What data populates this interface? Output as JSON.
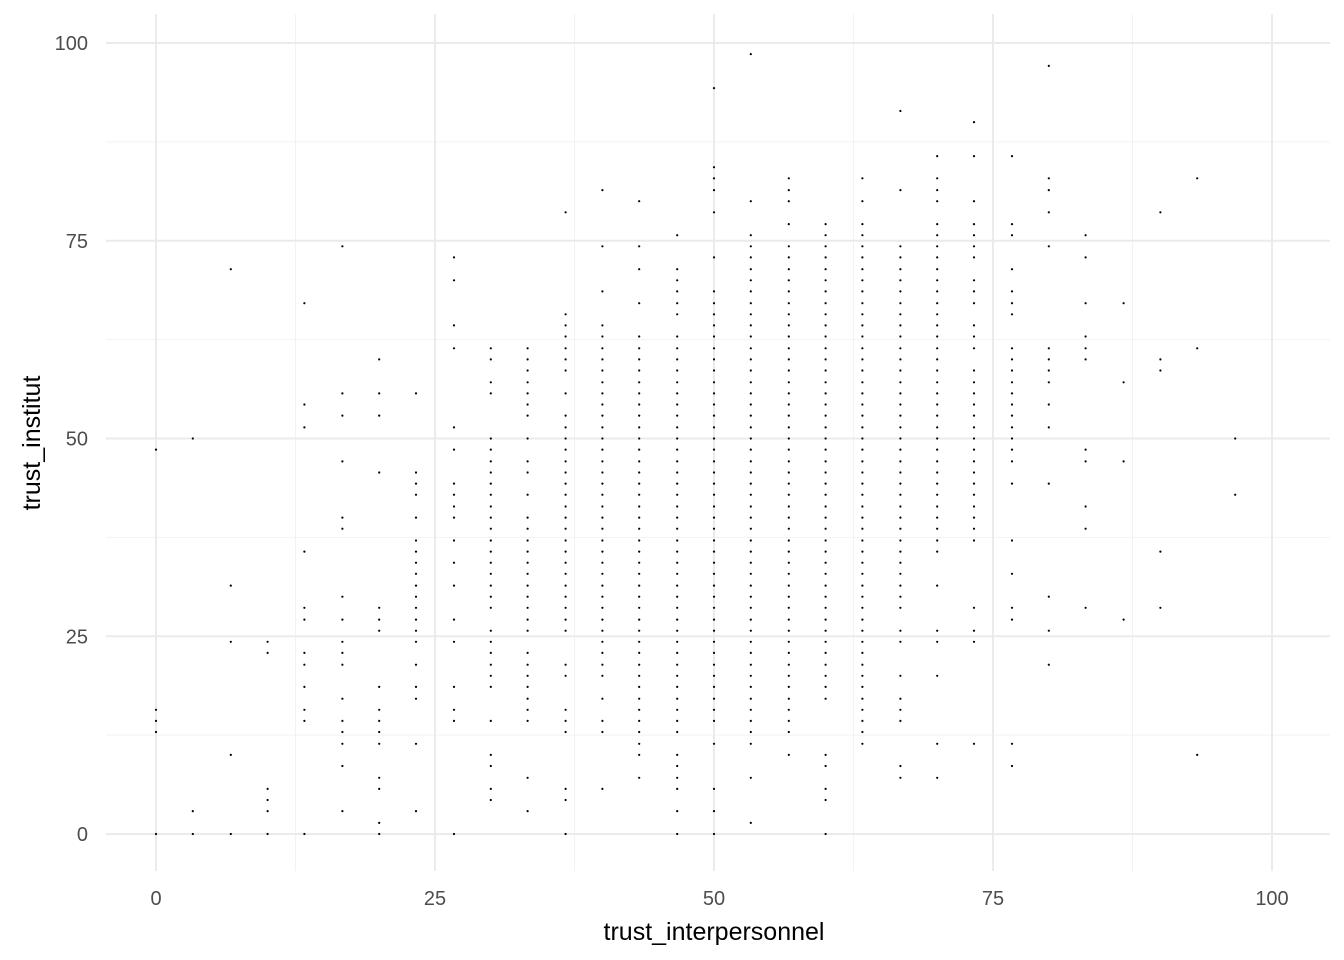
{
  "chart_data": {
    "type": "scatter",
    "title": "",
    "xlabel": "trust_interpersonnel",
    "ylabel": "trust_institut",
    "xlim": [
      -4.5,
      104.5
    ],
    "ylim": [
      -5,
      103.5
    ],
    "xticks": [
      0,
      25,
      50,
      75,
      100
    ],
    "yticks": [
      0,
      25,
      50,
      75,
      100
    ],
    "x_tick_labels": [
      "0",
      "25",
      "50",
      "75",
      "100"
    ],
    "y_tick_labels": [
      "0",
      "25",
      "50",
      "75",
      "100"
    ],
    "grid": true,
    "theme": "minimal",
    "point_color": "#000000",
    "series": [
      {
        "columns": [
          {
            "x": 0,
            "y": [
              0,
              12.9,
              14.3,
              15.7,
              48.6
            ]
          },
          {
            "x": 3.3,
            "y": [
              0,
              2.9,
              50
            ]
          },
          {
            "x": 6.7,
            "y": [
              0,
              10,
              24.3,
              31.4,
              71.4
            ]
          },
          {
            "x": 10,
            "y": [
              0,
              2.9,
              4.3,
              5.7,
              22.9,
              24.3
            ]
          },
          {
            "x": 13.3,
            "y": [
              0,
              14.3,
              15.7,
              18.6,
              21.4,
              22.9,
              27.1,
              28.6,
              35.7,
              51.4,
              54.3,
              67.1
            ]
          },
          {
            "x": 16.7,
            "y": [
              2.9,
              8.6,
              11.4,
              12.9,
              14.3,
              17.1,
              21.4,
              22.9,
              24.3,
              27.1,
              30,
              38.6,
              40,
              47.1,
              52.9,
              55.7,
              74.3
            ]
          },
          {
            "x": 20,
            "y": [
              0,
              1.4,
              5.7,
              7.1,
              11.4,
              12.9,
              14.3,
              15.7,
              18.6,
              25.7,
              27.1,
              28.6,
              45.7,
              52.9,
              55.7,
              60
            ]
          },
          {
            "x": 23.3,
            "y": [
              2.9,
              11.4,
              17.1,
              18.6,
              21.4,
              24.3,
              25.7,
              27.1,
              28.6,
              30,
              31.4,
              32.9,
              34.3,
              35.7,
              37.1,
              40,
              42.9,
              44.3,
              45.7,
              55.7
            ]
          },
          {
            "x": 26.7,
            "y": [
              0,
              14.3,
              15.7,
              18.6,
              24.3,
              27.1,
              31.4,
              34.3,
              37.1,
              40,
              41.4,
              42.9,
              44.3,
              48.6,
              51.4,
              61.4,
              64.3,
              70,
              72.9
            ]
          },
          {
            "x": 30,
            "y": [
              4.3,
              5.7,
              8.6,
              10,
              14.3,
              18.6,
              20,
              21.4,
              22.9,
              24.3,
              25.7,
              28.6,
              30,
              31.4,
              32.9,
              34.3,
              35.7,
              37.1,
              38.6,
              40,
              41.4,
              42.9,
              44.3,
              45.7,
              47.1,
              48.6,
              50,
              55.7,
              57.1,
              60,
              61.4
            ]
          },
          {
            "x": 33.3,
            "y": [
              2.9,
              7.1,
              14.3,
              15.7,
              17.1,
              18.6,
              20,
              21.4,
              22.9,
              25.7,
              27.1,
              28.6,
              30,
              31.4,
              32.9,
              34.3,
              35.7,
              37.1,
              38.6,
              40,
              42.9,
              45.7,
              47.1,
              50,
              52.9,
              54.3,
              55.7,
              57.1,
              58.6,
              60,
              61.4
            ]
          },
          {
            "x": 36.7,
            "y": [
              0,
              4.3,
              5.7,
              12.9,
              14.3,
              15.7,
              20,
              21.4,
              25.7,
              27.1,
              28.6,
              30,
              31.4,
              32.9,
              34.3,
              35.7,
              37.1,
              38.6,
              40,
              41.4,
              42.9,
              44.3,
              45.7,
              47.1,
              48.6,
              50,
              51.4,
              52.9,
              55.7,
              58.6,
              60,
              61.4,
              62.9,
              64.3,
              65.7,
              78.6
            ]
          },
          {
            "x": 40,
            "y": [
              5.7,
              12.9,
              14.3,
              17.1,
              20,
              21.4,
              22.9,
              24.3,
              25.7,
              27.1,
              28.6,
              30,
              31.4,
              32.9,
              34.3,
              35.7,
              37.1,
              38.6,
              40,
              41.4,
              42.9,
              44.3,
              45.7,
              47.1,
              48.6,
              50,
              51.4,
              52.9,
              54.3,
              55.7,
              57.1,
              58.6,
              60,
              61.4,
              62.9,
              64.3,
              68.6,
              74.3,
              81.4
            ]
          },
          {
            "x": 43.3,
            "y": [
              7.1,
              10,
              11.4,
              12.9,
              14.3,
              15.7,
              17.1,
              18.6,
              20,
              21.4,
              22.9,
              24.3,
              25.7,
              27.1,
              28.6,
              30,
              31.4,
              32.9,
              34.3,
              35.7,
              37.1,
              38.6,
              40,
              41.4,
              42.9,
              44.3,
              45.7,
              47.1,
              48.6,
              50,
              51.4,
              52.9,
              54.3,
              55.7,
              57.1,
              58.6,
              60,
              61.4,
              62.9,
              67.1,
              71.4,
              74.3,
              80
            ]
          },
          {
            "x": 46.7,
            "y": [
              0,
              2.9,
              5.7,
              7.1,
              8.6,
              10,
              12.9,
              14.3,
              15.7,
              17.1,
              18.6,
              20,
              21.4,
              22.9,
              24.3,
              25.7,
              27.1,
              28.6,
              30,
              31.4,
              32.9,
              34.3,
              35.7,
              37.1,
              38.6,
              40,
              41.4,
              42.9,
              44.3,
              45.7,
              47.1,
              48.6,
              50,
              51.4,
              52.9,
              54.3,
              55.7,
              57.1,
              58.6,
              60,
              61.4,
              62.9,
              65.7,
              67.1,
              68.6,
              70,
              71.4,
              75.7
            ]
          },
          {
            "x": 50,
            "y": [
              0,
              2.9,
              5.7,
              11.4,
              14.3,
              15.7,
              17.1,
              18.6,
              20,
              21.4,
              22.9,
              24.3,
              25.7,
              27.1,
              28.6,
              30,
              31.4,
              32.9,
              34.3,
              35.7,
              37.1,
              38.6,
              40,
              41.4,
              42.9,
              44.3,
              45.7,
              47.1,
              48.6,
              50,
              51.4,
              52.9,
              54.3,
              55.7,
              57.1,
              58.6,
              60,
              61.4,
              62.9,
              64.3,
              65.7,
              67.1,
              68.6,
              72.9,
              78.6,
              81.4,
              82.9,
              84.3,
              94.3
            ]
          },
          {
            "x": 53.3,
            "y": [
              1.4,
              7.1,
              11.4,
              12.9,
              14.3,
              15.7,
              17.1,
              18.6,
              20,
              21.4,
              22.9,
              24.3,
              25.7,
              27.1,
              28.6,
              30,
              31.4,
              32.9,
              34.3,
              35.7,
              37.1,
              38.6,
              40,
              41.4,
              42.9,
              44.3,
              45.7,
              47.1,
              48.6,
              50,
              51.4,
              52.9,
              54.3,
              55.7,
              57.1,
              58.6,
              60,
              61.4,
              62.9,
              64.3,
              65.7,
              67.1,
              68.6,
              70,
              71.4,
              72.9,
              74.3,
              75.7,
              80,
              98.6
            ]
          },
          {
            "x": 56.7,
            "y": [
              10,
              12.9,
              14.3,
              15.7,
              17.1,
              18.6,
              20,
              21.4,
              22.9,
              24.3,
              25.7,
              27.1,
              28.6,
              30,
              31.4,
              32.9,
              34.3,
              35.7,
              37.1,
              38.6,
              40,
              41.4,
              42.9,
              44.3,
              45.7,
              47.1,
              48.6,
              50,
              51.4,
              52.9,
              54.3,
              55.7,
              57.1,
              58.6,
              60,
              61.4,
              62.9,
              64.3,
              65.7,
              67.1,
              68.6,
              70,
              71.4,
              72.9,
              74.3,
              77.1,
              80,
              81.4,
              82.9
            ]
          },
          {
            "x": 60,
            "y": [
              0,
              4.3,
              5.7,
              8.6,
              10,
              17.1,
              18.6,
              20,
              21.4,
              22.9,
              24.3,
              25.7,
              27.1,
              28.6,
              30,
              31.4,
              32.9,
              34.3,
              35.7,
              37.1,
              38.6,
              40,
              41.4,
              42.9,
              44.3,
              45.7,
              47.1,
              48.6,
              50,
              51.4,
              52.9,
              54.3,
              55.7,
              57.1,
              58.6,
              60,
              61.4,
              62.9,
              64.3,
              65.7,
              67.1,
              68.6,
              70,
              71.4,
              72.9,
              74.3,
              75.7,
              77.1
            ]
          },
          {
            "x": 63.3,
            "y": [
              11.4,
              12.9,
              14.3,
              15.7,
              17.1,
              18.6,
              20,
              21.4,
              22.9,
              24.3,
              25.7,
              27.1,
              28.6,
              30,
              31.4,
              32.9,
              34.3,
              35.7,
              37.1,
              38.6,
              40,
              41.4,
              42.9,
              44.3,
              45.7,
              47.1,
              48.6,
              50,
              51.4,
              52.9,
              54.3,
              55.7,
              57.1,
              58.6,
              60,
              61.4,
              62.9,
              64.3,
              65.7,
              67.1,
              68.6,
              70,
              71.4,
              72.9,
              74.3,
              75.7,
              77.1,
              80,
              82.9
            ]
          },
          {
            "x": 66.7,
            "y": [
              7.1,
              8.6,
              14.3,
              15.7,
              17.1,
              20,
              24.3,
              25.7,
              28.6,
              30,
              31.4,
              32.9,
              34.3,
              35.7,
              37.1,
              38.6,
              40,
              41.4,
              42.9,
              44.3,
              45.7,
              47.1,
              48.6,
              50,
              51.4,
              52.9,
              54.3,
              55.7,
              57.1,
              58.6,
              60,
              61.4,
              62.9,
              64.3,
              65.7,
              67.1,
              68.6,
              70,
              71.4,
              72.9,
              74.3,
              81.4,
              91.4
            ]
          },
          {
            "x": 70,
            "y": [
              7.1,
              11.4,
              20,
              24.3,
              25.7,
              31.4,
              35.7,
              37.1,
              38.6,
              40,
              41.4,
              42.9,
              44.3,
              45.7,
              47.1,
              48.6,
              50,
              51.4,
              52.9,
              54.3,
              55.7,
              57.1,
              58.6,
              60,
              61.4,
              62.9,
              64.3,
              65.7,
              67.1,
              68.6,
              70,
              71.4,
              72.9,
              74.3,
              75.7,
              77.1,
              80,
              81.4,
              82.9,
              85.7
            ]
          },
          {
            "x": 73.3,
            "y": [
              11.4,
              24.3,
              25.7,
              28.6,
              37.1,
              38.6,
              40,
              41.4,
              42.9,
              44.3,
              45.7,
              47.1,
              48.6,
              50,
              51.4,
              52.9,
              54.3,
              55.7,
              57.1,
              58.6,
              61.4,
              62.9,
              64.3,
              67.1,
              68.6,
              70,
              72.9,
              74.3,
              75.7,
              77.1,
              80,
              85.7,
              90
            ]
          },
          {
            "x": 76.7,
            "y": [
              8.6,
              11.4,
              27.1,
              28.6,
              32.9,
              37.1,
              44.3,
              47.1,
              48.6,
              50,
              51.4,
              52.9,
              54.3,
              55.7,
              57.1,
              58.6,
              60,
              61.4,
              65.7,
              67.1,
              68.6,
              71.4,
              75.7,
              77.1,
              85.7
            ]
          },
          {
            "x": 80,
            "y": [
              21.4,
              25.7,
              30,
              44.3,
              51.4,
              54.3,
              57.1,
              58.6,
              60,
              61.4,
              74.3,
              78.6,
              81.4,
              82.9,
              97.1
            ]
          },
          {
            "x": 83.3,
            "y": [
              28.6,
              38.6,
              41.4,
              47.1,
              48.6,
              60,
              61.4,
              62.9,
              67.1,
              72.9,
              75.7
            ]
          },
          {
            "x": 86.7,
            "y": [
              27.1,
              47.1,
              57.1,
              67.1
            ]
          },
          {
            "x": 90,
            "y": [
              28.6,
              35.7,
              58.6,
              60,
              78.6
            ]
          },
          {
            "x": 93.3,
            "y": [
              10,
              61.4,
              82.9
            ]
          },
          {
            "x": 96.7,
            "y": [
              42.9,
              50
            ]
          }
        ]
      }
    ]
  }
}
